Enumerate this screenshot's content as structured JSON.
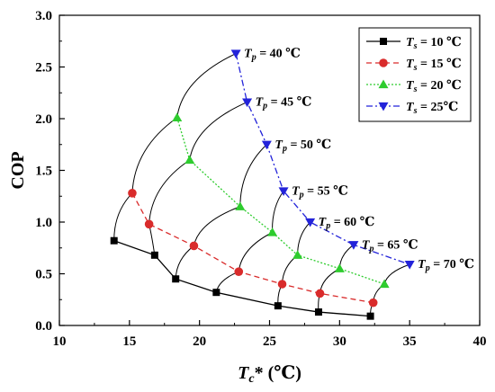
{
  "chart_data": {
    "type": "line",
    "xlabel": "Tc* (℃)",
    "ylabel": "COP",
    "xlim": [
      10,
      40
    ],
    "ylim": [
      0,
      3.0
    ],
    "x_ticks": [
      "10",
      "15",
      "20",
      "25",
      "30",
      "35",
      "40"
    ],
    "y_ticks": [
      "0.0",
      "0.5",
      "1.0",
      "1.5",
      "2.0",
      "2.5",
      "3.0"
    ],
    "grid": false,
    "legend_position": "top-right",
    "series": [
      {
        "name": "Ts = 10 ℃",
        "color": "#000000",
        "marker": "square",
        "dash": "solid",
        "points": [
          [
            13.9,
            0.82
          ],
          [
            16.8,
            0.68
          ],
          [
            18.3,
            0.45
          ],
          [
            21.2,
            0.32
          ],
          [
            25.6,
            0.19
          ],
          [
            28.5,
            0.13
          ],
          [
            32.2,
            0.09
          ]
        ]
      },
      {
        "name": "Ts = 15 ℃",
        "color": "#d92b2b",
        "marker": "circle",
        "dash": "dashed",
        "points": [
          [
            15.2,
            1.28
          ],
          [
            16.4,
            0.98
          ],
          [
            19.6,
            0.77
          ],
          [
            22.8,
            0.52
          ],
          [
            25.9,
            0.4
          ],
          [
            28.6,
            0.31
          ],
          [
            32.4,
            0.22
          ]
        ]
      },
      {
        "name": "Ts = 20 ℃",
        "color": "#2ecc2e",
        "marker": "triangle-up",
        "dash": "dotted",
        "points": [
          [
            18.4,
            2.01
          ],
          [
            19.3,
            1.6
          ],
          [
            22.9,
            1.15
          ],
          [
            25.2,
            0.9
          ],
          [
            27.0,
            0.68
          ],
          [
            30.0,
            0.55
          ],
          [
            33.2,
            0.4
          ]
        ]
      },
      {
        "name": "Ts = 25℃",
        "color": "#2323d9",
        "marker": "triangle-down",
        "dash": "dashdot",
        "points": [
          [
            22.6,
            2.63
          ],
          [
            23.4,
            2.16
          ],
          [
            24.8,
            1.75
          ],
          [
            26.0,
            1.3
          ],
          [
            27.9,
            1.0
          ],
          [
            31.0,
            0.78
          ],
          [
            35.0,
            0.59
          ]
        ]
      }
    ],
    "annotations": [
      {
        "text": "Tp = 40 ℃",
        "x": 22.6,
        "y": 2.63
      },
      {
        "text": "Tp = 45 ℃",
        "x": 23.4,
        "y": 2.16
      },
      {
        "text": "Tp = 50 ℃",
        "x": 24.8,
        "y": 1.75
      },
      {
        "text": "Tp = 55 ℃",
        "x": 26.0,
        "y": 1.3
      },
      {
        "text": "Tp = 60 ℃",
        "x": 27.9,
        "y": 1.0
      },
      {
        "text": "Tp = 65 ℃",
        "x": 31.0,
        "y": 0.78
      },
      {
        "text": "Tp = 70 ℃",
        "x": 35.0,
        "y": 0.59
      }
    ]
  }
}
